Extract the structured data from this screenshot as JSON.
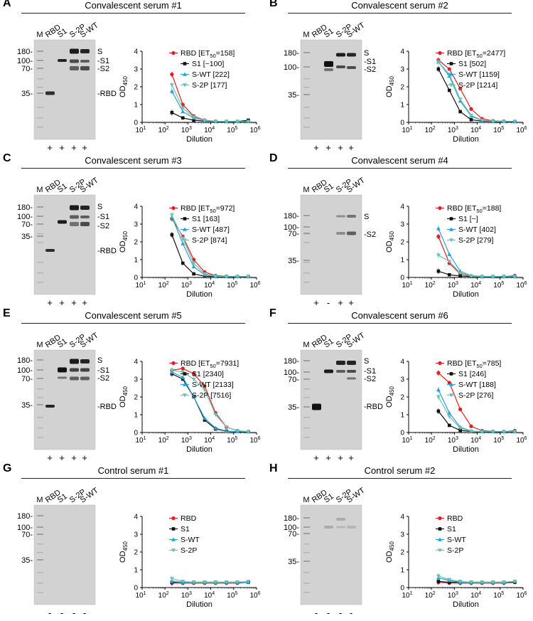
{
  "figure": {
    "lanes": [
      "RBD",
      "S1",
      "S-2P",
      "S-WT"
    ],
    "marker": "M",
    "x_label": "Dilution",
    "y_label": "OD",
    "y_sub": "450",
    "x_ticks": [
      "10",
      "10",
      "10",
      "10",
      "10",
      "10"
    ],
    "x_exp": [
      "1",
      "2",
      "3",
      "4",
      "5",
      "6"
    ],
    "y_ticks": [
      "0",
      "1",
      "2",
      "3",
      "4"
    ]
  },
  "colors": {
    "RBD": "#e02020",
    "S1": "#111111",
    "S-WT": "#2b9fd6",
    "S-2P": "#6cc2b2"
  },
  "panels": [
    {
      "letter": "A",
      "title": "Convalescent serum #1",
      "mw": [
        "180-",
        "100-",
        "70-",
        "35-"
      ],
      "band_labels": [
        "S",
        "S1",
        "S2",
        "RBD"
      ],
      "signs": [
        "+",
        "+",
        "+",
        "+"
      ],
      "legend": [
        {
          "pre": "RBD [ET",
          "sub": "50",
          "post": "=158]"
        },
        {
          "text": "S1 [~100]"
        },
        {
          "text": "S-WT [222]"
        },
        {
          "text": "S-2P [177]"
        }
      ]
    },
    {
      "letter": "B",
      "title": "Convalescent serum #2",
      "mw": [
        "180-",
        "100-",
        "35-"
      ],
      "band_labels": [
        "S",
        "S1",
        "S2"
      ],
      "signs": [
        "+",
        "+",
        "+",
        "+"
      ],
      "legend": [
        {
          "pre": "RBD [ET",
          "sub": "50",
          "post": "=2477]"
        },
        {
          "text": "S1 [502]"
        },
        {
          "text": "S-WT [1159]"
        },
        {
          "text": "S-2P [1214]"
        }
      ]
    },
    {
      "letter": "C",
      "title": "Convalescent serum #3",
      "mw": [
        "180-",
        "100-",
        "70-",
        "35-"
      ],
      "band_labels": [
        "S",
        "S1",
        "S2",
        "RBD"
      ],
      "signs": [
        "+",
        "+",
        "+",
        "+"
      ],
      "legend": [
        {
          "pre": "RBD [ET",
          "sub": "50",
          "post": "=972]"
        },
        {
          "text": "S1 [163]"
        },
        {
          "text": "S-WT [487]"
        },
        {
          "text": "S-2P [874]"
        }
      ]
    },
    {
      "letter": "D",
      "title": "Convalescent serum #4",
      "mw": [
        "180-",
        "100-",
        "70-",
        "35-"
      ],
      "band_labels": [
        "S",
        "S2"
      ],
      "signs": [
        "+",
        "-",
        "+",
        "+"
      ],
      "legend": [
        {
          "pre": "RBD [ET",
          "sub": "50",
          "post": "=188]"
        },
        {
          "text": "S1 [~]"
        },
        {
          "text": "S-WT [402]"
        },
        {
          "text": "S-2P [279]"
        }
      ]
    },
    {
      "letter": "E",
      "title": "Convalescent serum #5",
      "mw": [
        "180-",
        "100-",
        "70-",
        "35-"
      ],
      "band_labels": [
        "S",
        "S1",
        "S2",
        "RBD"
      ],
      "signs": [
        "+",
        "+",
        "+",
        "+"
      ],
      "legend": [
        {
          "pre": "RBD [ET",
          "sub": "50",
          "post": "=7931]"
        },
        {
          "text": "S1 [2340]"
        },
        {
          "text": "S-WT [2133]"
        },
        {
          "text": "S-2P [7516]"
        }
      ]
    },
    {
      "letter": "F",
      "title": "Convalescent serum #6",
      "mw": [
        "180-",
        "100-",
        "70-",
        "35-"
      ],
      "band_labels": [
        "S",
        "S1",
        "S2",
        "RBD"
      ],
      "signs": [
        "+",
        "+",
        "+",
        "+"
      ],
      "legend": [
        {
          "pre": "RBD [ET",
          "sub": "50",
          "post": "=785]"
        },
        {
          "text": "S1 [246]"
        },
        {
          "text": "S-WT [188]"
        },
        {
          "text": "S-2P [276]"
        }
      ]
    },
    {
      "letter": "G",
      "title": "Control serum #1",
      "mw": [
        "180-",
        "100-",
        "70-",
        "35-"
      ],
      "band_labels": [],
      "signs": [
        "-",
        "-",
        "-",
        "-"
      ],
      "legend": [
        {
          "text": "RBD"
        },
        {
          "text": "S1"
        },
        {
          "text": "S-WT"
        },
        {
          "text": "S-2P"
        }
      ]
    },
    {
      "letter": "H",
      "title": "Control serum #2",
      "mw": [
        "180-",
        "100-",
        "70-",
        "35-"
      ],
      "band_labels": [],
      "signs": [
        "-",
        "-",
        "-",
        "-"
      ],
      "legend": [
        {
          "text": "RBD"
        },
        {
          "text": "S1"
        },
        {
          "text": "S-WT"
        },
        {
          "text": "S-2P"
        }
      ]
    }
  ],
  "chart_data": [
    {
      "type": "line",
      "title": "Convalescent serum #1",
      "xlabel": "Dilution",
      "ylabel": "OD450",
      "xscale": "log",
      "xlim": [
        10,
        1000000
      ],
      "ylim": [
        0,
        4
      ],
      "x": [
        200,
        600,
        1800,
        5400,
        16200,
        48600,
        145800,
        437400
      ],
      "series": [
        {
          "name": "RBD",
          "values": [
            2.7,
            1.0,
            0.35,
            0.12,
            0.06,
            0.05,
            0.05,
            0.06
          ]
        },
        {
          "name": "S1",
          "values": [
            0.55,
            0.25,
            0.12,
            0.07,
            0.05,
            0.05,
            0.05,
            0.12
          ]
        },
        {
          "name": "S-WT",
          "values": [
            1.75,
            0.6,
            0.25,
            0.1,
            0.06,
            0.05,
            0.05,
            0.05
          ]
        },
        {
          "name": "S-2P",
          "values": [
            2.1,
            0.8,
            0.3,
            0.1,
            0.06,
            0.05,
            0.05,
            0.05
          ]
        }
      ]
    },
    {
      "type": "line",
      "title": "Convalescent serum #2",
      "xlabel": "Dilution",
      "ylabel": "OD450",
      "xscale": "log",
      "xlim": [
        10,
        1000000
      ],
      "ylim": [
        0,
        4
      ],
      "x": [
        200,
        600,
        1800,
        5400,
        16200,
        48600,
        145800,
        437400
      ],
      "series": [
        {
          "name": "RBD",
          "values": [
            3.5,
            3.0,
            1.9,
            0.75,
            0.2,
            0.08,
            0.06,
            0.05
          ]
        },
        {
          "name": "S1",
          "values": [
            3.0,
            1.8,
            0.6,
            0.15,
            0.07,
            0.05,
            0.05,
            0.05
          ]
        },
        {
          "name": "S-WT",
          "values": [
            3.4,
            2.6,
            1.2,
            0.35,
            0.1,
            0.06,
            0.05,
            0.05
          ]
        },
        {
          "name": "S-2P",
          "values": [
            3.4,
            2.7,
            1.3,
            0.4,
            0.12,
            0.06,
            0.05,
            0.05
          ]
        }
      ]
    },
    {
      "type": "line",
      "title": "Convalescent serum #3",
      "xlabel": "Dilution",
      "ylabel": "OD450",
      "xscale": "log",
      "xlim": [
        10,
        1000000
      ],
      "ylim": [
        0,
        4
      ],
      "x": [
        200,
        600,
        1800,
        5400,
        16200,
        48600,
        145800,
        437400
      ],
      "series": [
        {
          "name": "RBD",
          "values": [
            3.3,
            2.3,
            1.0,
            0.3,
            0.1,
            0.06,
            0.05,
            0.05
          ]
        },
        {
          "name": "S1",
          "values": [
            2.4,
            0.8,
            0.2,
            0.07,
            0.05,
            0.05,
            0.05,
            0.05
          ]
        },
        {
          "name": "S-WT",
          "values": [
            3.4,
            1.9,
            0.6,
            0.15,
            0.06,
            0.05,
            0.05,
            0.05
          ]
        },
        {
          "name": "S-2P",
          "values": [
            3.5,
            2.2,
            0.8,
            0.2,
            0.07,
            0.05,
            0.05,
            0.05
          ]
        }
      ]
    },
    {
      "type": "line",
      "title": "Convalescent serum #4",
      "xlabel": "Dilution",
      "ylabel": "OD450",
      "xscale": "log",
      "xlim": [
        10,
        1000000
      ],
      "ylim": [
        0,
        4
      ],
      "x": [
        200,
        600,
        1800,
        5400,
        16200,
        48600,
        145800,
        437400
      ],
      "series": [
        {
          "name": "RBD",
          "values": [
            2.3,
            0.8,
            0.2,
            0.08,
            0.05,
            0.05,
            0.05,
            0.1
          ]
        },
        {
          "name": "S1",
          "values": [
            0.35,
            0.15,
            0.08,
            0.06,
            0.05,
            0.05,
            0.05,
            0.05
          ]
        },
        {
          "name": "S-WT",
          "values": [
            2.75,
            1.3,
            0.35,
            0.1,
            0.06,
            0.05,
            0.05,
            0.05
          ]
        },
        {
          "name": "S-2P",
          "values": [
            1.25,
            0.9,
            0.25,
            0.08,
            0.05,
            0.05,
            0.05,
            0.05
          ]
        }
      ]
    },
    {
      "type": "line",
      "title": "Convalescent serum #5",
      "xlabel": "Dilution",
      "ylabel": "OD450",
      "xscale": "log",
      "xlim": [
        10,
        1000000
      ],
      "ylim": [
        0,
        4
      ],
      "x": [
        200,
        600,
        1800,
        5400,
        16200,
        48600,
        145800,
        437400
      ],
      "series": [
        {
          "name": "RBD",
          "values": [
            3.5,
            3.6,
            3.3,
            2.6,
            1.1,
            0.3,
            0.1,
            0.05
          ]
        },
        {
          "name": "S1",
          "values": [
            3.3,
            3.0,
            2.0,
            0.7,
            0.2,
            0.07,
            0.05,
            0.05
          ]
        },
        {
          "name": "S-WT",
          "values": [
            3.4,
            3.1,
            2.0,
            0.8,
            0.25,
            0.08,
            0.05,
            0.05
          ]
        },
        {
          "name": "S-2P",
          "values": [
            3.5,
            3.4,
            3.0,
            2.4,
            1.0,
            0.3,
            0.1,
            0.05
          ]
        }
      ]
    },
    {
      "type": "line",
      "title": "Convalescent serum #6",
      "xlabel": "Dilution",
      "ylabel": "OD450",
      "xscale": "log",
      "xlim": [
        10,
        1000000
      ],
      "ylim": [
        0,
        4
      ],
      "x": [
        200,
        600,
        1800,
        5400,
        16200,
        48600,
        145800,
        437400
      ],
      "series": [
        {
          "name": "RBD",
          "values": [
            3.35,
            2.8,
            1.3,
            0.35,
            0.1,
            0.06,
            0.05,
            0.1
          ]
        },
        {
          "name": "S1",
          "values": [
            1.2,
            0.4,
            0.12,
            0.06,
            0.05,
            0.05,
            0.05,
            0.05
          ]
        },
        {
          "name": "S-WT",
          "values": [
            2.4,
            1.1,
            0.3,
            0.08,
            0.05,
            0.05,
            0.05,
            0.05
          ]
        },
        {
          "name": "S-2P",
          "values": [
            2.0,
            0.9,
            0.25,
            0.07,
            0.05,
            0.05,
            0.05,
            0.05
          ]
        }
      ]
    },
    {
      "type": "line",
      "title": "Control serum #1",
      "xlabel": "Dilution",
      "ylabel": "OD450",
      "xscale": "log",
      "xlim": [
        10,
        1000000
      ],
      "ylim": [
        0,
        4
      ],
      "x": [
        200,
        600,
        1800,
        5400,
        16200,
        48600,
        145800,
        437400
      ],
      "series": [
        {
          "name": "RBD",
          "values": [
            0.25,
            0.25,
            0.25,
            0.25,
            0.25,
            0.25,
            0.25,
            0.3
          ]
        },
        {
          "name": "S1",
          "values": [
            0.3,
            0.3,
            0.3,
            0.3,
            0.3,
            0.3,
            0.3,
            0.3
          ]
        },
        {
          "name": "S-WT",
          "values": [
            0.35,
            0.3,
            0.3,
            0.3,
            0.3,
            0.3,
            0.3,
            0.3
          ]
        },
        {
          "name": "S-2P",
          "values": [
            0.5,
            0.35,
            0.3,
            0.3,
            0.3,
            0.3,
            0.3,
            0.35
          ]
        }
      ]
    },
    {
      "type": "line",
      "title": "Control serum #2",
      "xlabel": "Dilution",
      "ylabel": "OD450",
      "xscale": "log",
      "xlim": [
        10,
        1000000
      ],
      "ylim": [
        0,
        4
      ],
      "x": [
        200,
        600,
        1800,
        5400,
        16200,
        48600,
        145800,
        437400
      ],
      "series": [
        {
          "name": "RBD",
          "values": [
            0.3,
            0.25,
            0.25,
            0.25,
            0.25,
            0.25,
            0.25,
            0.3
          ]
        },
        {
          "name": "S1",
          "values": [
            0.35,
            0.3,
            0.3,
            0.3,
            0.3,
            0.3,
            0.3,
            0.3
          ]
        },
        {
          "name": "S-WT",
          "values": [
            0.55,
            0.4,
            0.3,
            0.3,
            0.3,
            0.3,
            0.3,
            0.35
          ]
        },
        {
          "name": "S-2P",
          "values": [
            0.65,
            0.45,
            0.35,
            0.3,
            0.3,
            0.3,
            0.3,
            0.35
          ]
        }
      ]
    }
  ]
}
